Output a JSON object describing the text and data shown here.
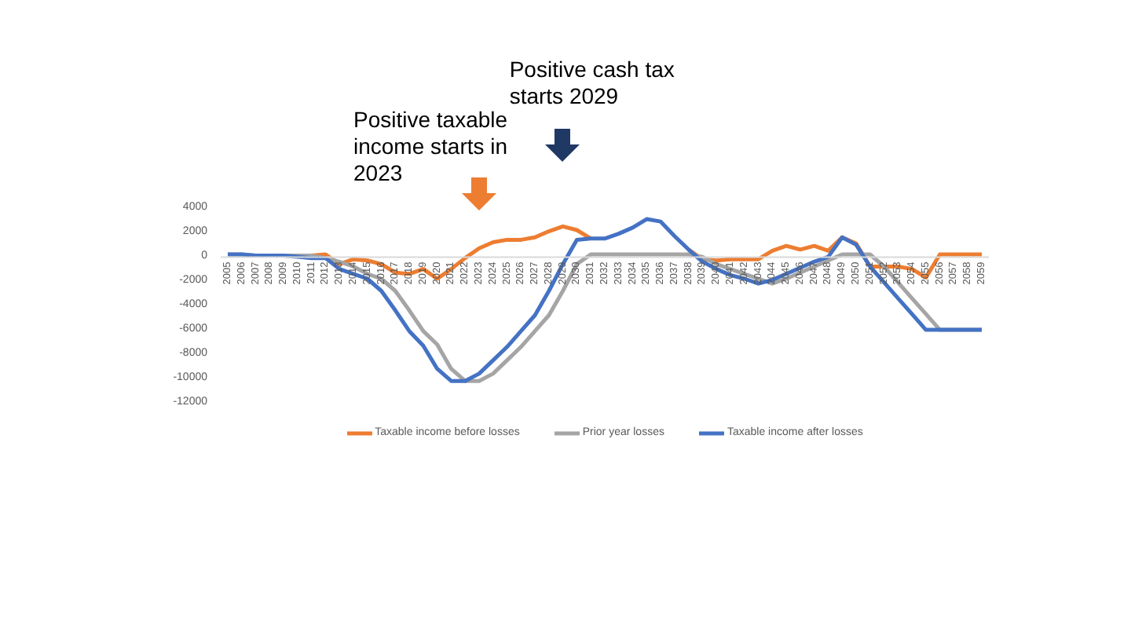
{
  "chart_data": {
    "type": "line",
    "categories": [
      "2005",
      "2006",
      "2007",
      "2008",
      "2009",
      "2010",
      "2011",
      "2012",
      "2013",
      "2014",
      "2015",
      "2016",
      "2017",
      "2018",
      "2019",
      "2020",
      "2021",
      "2022",
      "2023",
      "2024",
      "2025",
      "2026",
      "2027",
      "2028",
      "2029",
      "2030",
      "2031",
      "2032",
      "2033",
      "2034",
      "2035",
      "2036",
      "2037",
      "2038",
      "2039",
      "2040",
      "2041",
      "2042",
      "2043",
      "2044",
      "2045",
      "2046",
      "2047",
      "2048",
      "2049",
      "2050",
      "2051",
      "2052",
      "2053",
      "2054",
      "2055",
      "2056",
      "2057",
      "2058",
      "2059"
    ],
    "series": [
      {
        "name": "Taxable income before losses",
        "color": "#ed7d31",
        "values": [
          null,
          null,
          null,
          null,
          null,
          -100,
          -100,
          0,
          -800,
          -400,
          -500,
          -800,
          -1500,
          -1600,
          -1200,
          -2000,
          -1200,
          -300,
          500,
          1000,
          1200,
          1200,
          1400,
          1900,
          2300,
          2000,
          1300,
          null,
          null,
          null,
          null,
          null,
          null,
          400,
          -400,
          -500,
          -400,
          -400,
          -400,
          300,
          700,
          400,
          700,
          300,
          1400,
          900,
          -1000,
          -1000,
          -1000,
          -1200,
          -1900,
          0,
          0,
          0,
          0
        ]
      },
      {
        "name": "Prior year losses",
        "color": "#a5a5a5",
        "values": [
          0,
          0,
          -100,
          -100,
          -100,
          -100,
          -100,
          -300,
          -600,
          -1000,
          -1600,
          -2000,
          -3000,
          -4600,
          -6300,
          -7400,
          -9400,
          -10400,
          -10400,
          -9800,
          -8700,
          -7600,
          -6300,
          -5000,
          -3000,
          -800,
          0,
          0,
          0,
          0,
          0,
          0,
          0,
          0,
          -200,
          -800,
          -1200,
          -1600,
          -2000,
          -2400,
          -2000,
          -1500,
          -1000,
          -500,
          0,
          0,
          0,
          -1000,
          -2300,
          -3600,
          -4900,
          -6200,
          -6200,
          -6200,
          -6200
        ]
      },
      {
        "name": "Taxable income after losses",
        "color": "#4472c4",
        "values": [
          0,
          0,
          -100,
          -100,
          -100,
          -200,
          -300,
          -300,
          -1200,
          -1600,
          -2000,
          -3000,
          -4600,
          -6300,
          -7500,
          -9400,
          -10400,
          -10400,
          -9800,
          -8700,
          -7600,
          -6300,
          -5000,
          -3000,
          -800,
          1200,
          1300,
          1300,
          1700,
          2200,
          2900,
          2700,
          1500,
          400,
          -600,
          -1200,
          -1700,
          -2000,
          -2400,
          -2100,
          -1600,
          -1100,
          -600,
          -200,
          1400,
          800,
          -1000,
          -2300,
          -3600,
          -4900,
          -6200,
          -6200,
          -6200,
          -6200,
          -6200
        ]
      }
    ],
    "ylim": [
      -12000,
      4000
    ],
    "yticks": [
      -12000,
      -10000,
      -8000,
      -6000,
      -4000,
      -2000,
      0,
      2000,
      4000
    ],
    "annotations": [
      "Positive taxable income starts in 2023",
      "Positive cash tax starts 2029"
    ],
    "legend": "bottom",
    "grid": false,
    "marker": "none",
    "line_style": "solid"
  }
}
